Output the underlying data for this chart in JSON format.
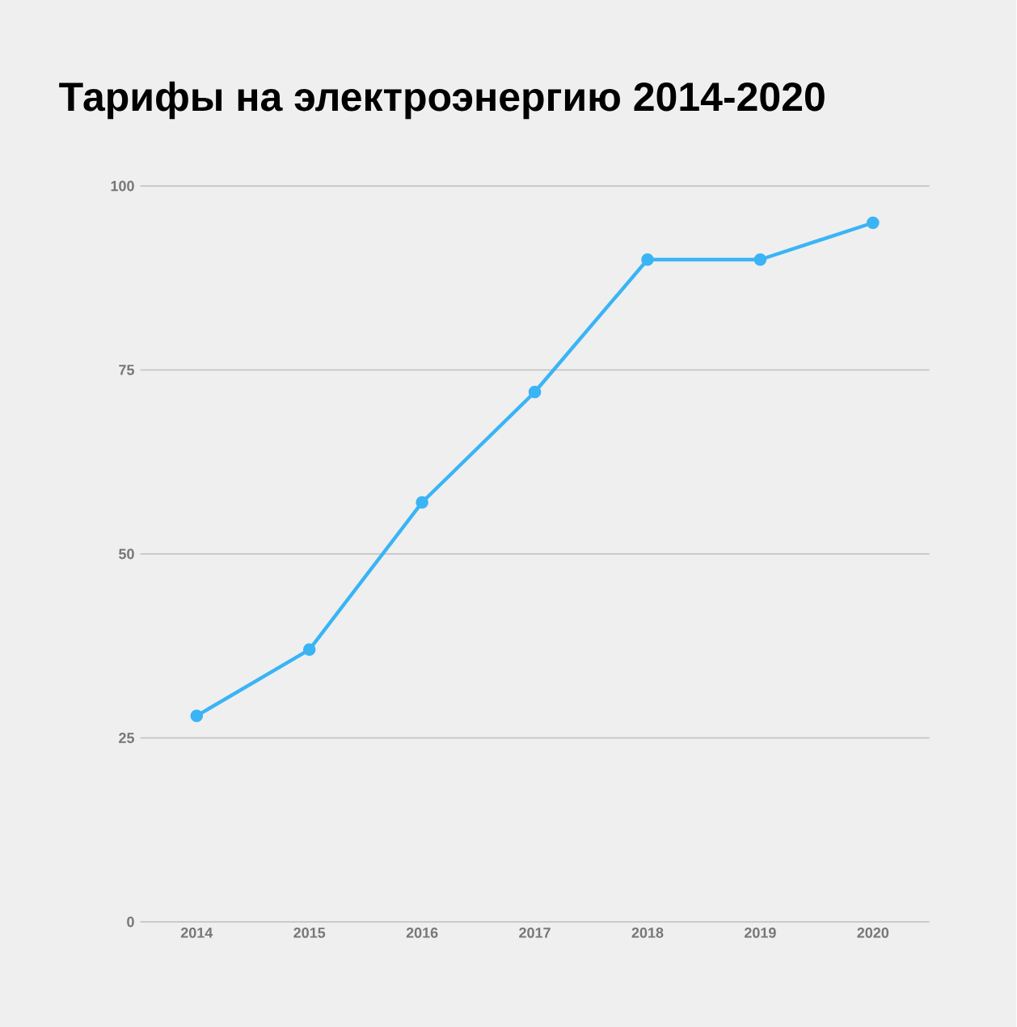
{
  "chart_data": {
    "type": "line",
    "title": "Тарифы на электроэнергию 2014-2020",
    "categories": [
      "2014",
      "2015",
      "2016",
      "2017",
      "2018",
      "2019",
      "2020"
    ],
    "values": [
      28,
      37,
      57,
      72,
      90,
      90,
      95
    ],
    "color": "#3ab4f5",
    "ylim": [
      0,
      100
    ],
    "yticks": [
      0,
      25,
      50,
      75,
      100
    ],
    "grid": "y",
    "marker": "circle"
  }
}
